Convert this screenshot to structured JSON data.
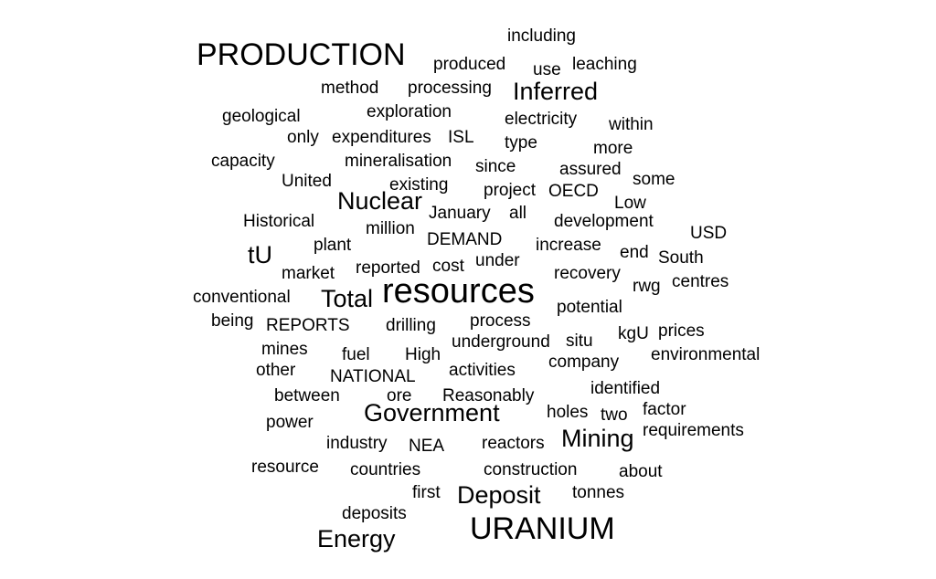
{
  "text_color": "#000000",
  "background_color": "#ffffff",
  "words": [
    "including",
    "PRODUCTION",
    "produced",
    "use",
    "leaching",
    "method",
    "processing",
    "Inferred",
    "geological",
    "exploration",
    "electricity",
    "within",
    "only",
    "expenditures",
    "ISL",
    "type",
    "more",
    "capacity",
    "mineralisation",
    "since",
    "assured",
    "United",
    "existing",
    "project",
    "OECD",
    "some",
    "Nuclear",
    "Low",
    "Historical",
    "January",
    "all",
    "development",
    "million",
    "USD",
    "plant",
    "DEMAND",
    "increase",
    "tU",
    "end",
    "South",
    "market",
    "reported",
    "cost",
    "under",
    "recovery",
    "centres",
    "rwg",
    "conventional",
    "Total",
    "resources",
    "potential",
    "being",
    "REPORTS",
    "drilling",
    "process",
    "kgU",
    "prices",
    "underground",
    "situ",
    "mines",
    "fuel",
    "High",
    "environmental",
    "company",
    "other",
    "activities",
    "NATIONAL",
    "identified",
    "between",
    "ore",
    "Reasonably",
    "factor",
    "holes",
    "two",
    "Government",
    "power",
    "requirements",
    "Mining",
    "industry",
    "NEA",
    "reactors",
    "resource",
    "countries",
    "construction",
    "about",
    "first",
    "Deposit",
    "tonnes",
    "deposits",
    "URANIUM",
    "Energy"
  ]
}
